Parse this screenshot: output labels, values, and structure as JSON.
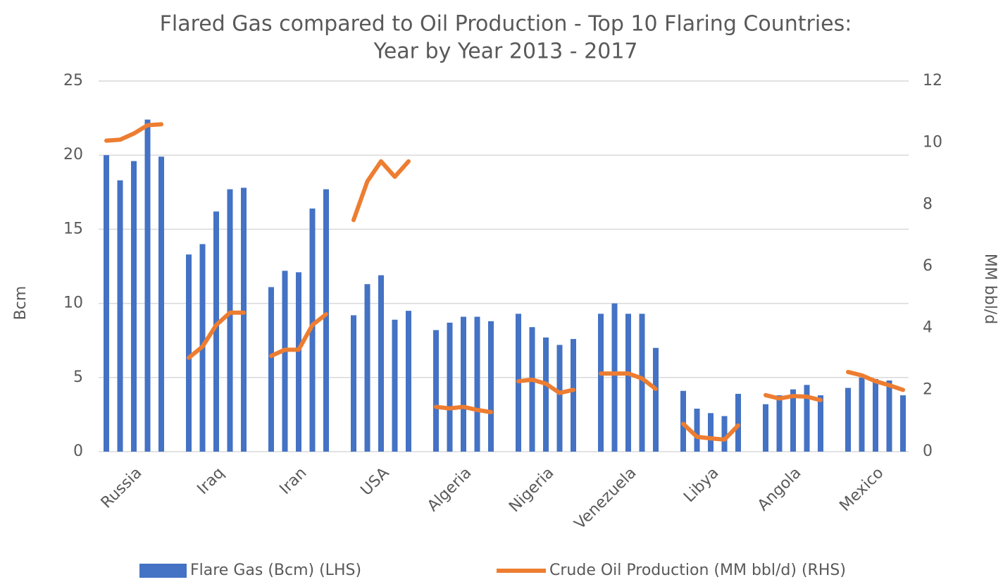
{
  "chart_data": {
    "type": "grouped-bar-line",
    "title": [
      "Flared Gas compared to Oil Production - Top 10 Flaring Countries:",
      "Year by Year 2013 - 2017"
    ],
    "ylabel": "Bcm",
    "y2label": "MM bbl/d",
    "categories": [
      "Russia",
      "Iraq",
      "Iran",
      "USA",
      "Algeria",
      "Nigeria",
      "Venezuela",
      "Libya",
      "Angola",
      "Mexico"
    ],
    "series": [
      {
        "name": "Flare Gas (Bcm) (LHS)",
        "color": "#4472c4",
        "kind": "bar",
        "values": [
          [
            20.0,
            18.3,
            19.6,
            22.4,
            19.9
          ],
          [
            13.3,
            14.0,
            16.2,
            17.7,
            17.8
          ],
          [
            11.1,
            12.2,
            12.1,
            16.4,
            17.7
          ],
          [
            9.2,
            11.3,
            11.9,
            8.9,
            9.5
          ],
          [
            8.2,
            8.7,
            9.1,
            9.1,
            8.8
          ],
          [
            9.3,
            8.4,
            7.7,
            7.2,
            7.6
          ],
          [
            9.3,
            10.0,
            9.3,
            9.3,
            7.0
          ],
          [
            4.1,
            2.9,
            2.6,
            2.4,
            3.9
          ],
          [
            3.2,
            3.8,
            4.2,
            4.5,
            3.8
          ],
          [
            4.3,
            5.0,
            4.9,
            4.8,
            3.8
          ]
        ]
      },
      {
        "name": "Crude Oil Production (MM bbl/d) (RHS)",
        "color": "#ed7d31",
        "kind": "line",
        "axis": "y2",
        "values": [
          [
            10.07,
            10.1,
            10.3,
            10.57,
            10.6
          ],
          [
            3.04,
            3.4,
            4.1,
            4.5,
            4.5
          ],
          [
            3.1,
            3.3,
            3.3,
            4.1,
            4.45
          ],
          [
            7.5,
            8.75,
            9.4,
            8.9,
            9.4
          ],
          [
            1.45,
            1.4,
            1.45,
            1.35,
            1.28
          ],
          [
            2.28,
            2.33,
            2.2,
            1.9,
            2.0
          ],
          [
            2.53,
            2.53,
            2.53,
            2.37,
            2.03
          ],
          [
            0.9,
            0.48,
            0.43,
            0.39,
            0.85
          ],
          [
            1.83,
            1.72,
            1.8,
            1.78,
            1.67
          ],
          [
            2.58,
            2.47,
            2.28,
            2.15,
            2.0
          ]
        ]
      }
    ],
    "ylim": [
      0,
      25
    ],
    "yticks": [
      0,
      5,
      10,
      15,
      20,
      25
    ],
    "y2lim": [
      0,
      12
    ],
    "y2ticks": [
      0,
      2,
      4,
      6,
      8,
      10,
      12
    ],
    "grid": true,
    "legend": "bottom"
  }
}
